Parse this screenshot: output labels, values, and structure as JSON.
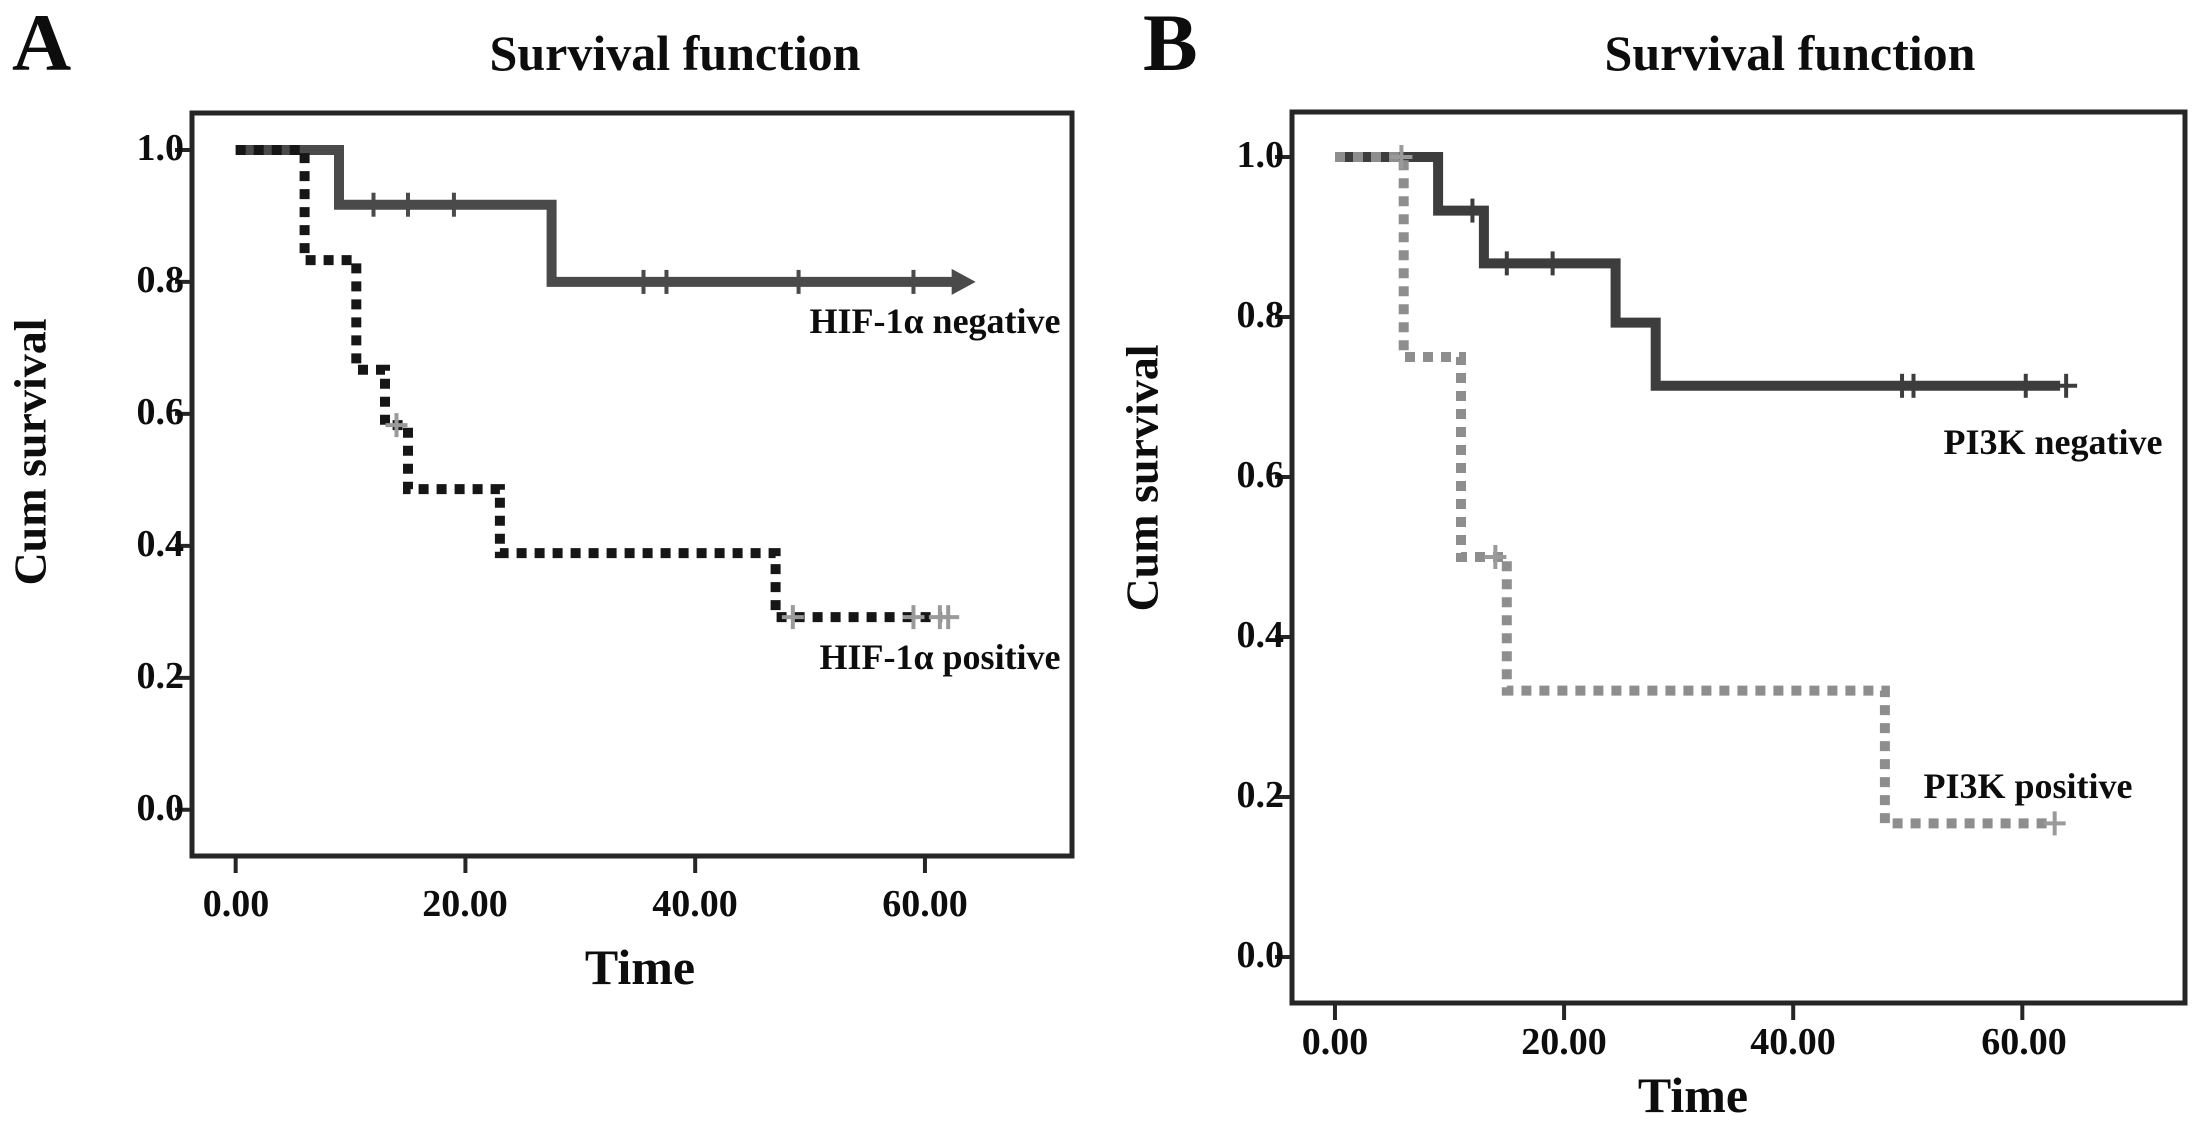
{
  "figure": {
    "panel_a_letter": "A",
    "panel_b_letter": "B"
  },
  "chart_data": [
    {
      "type": "line",
      "subtype": "kaplan-meier-step",
      "panel": "A",
      "title": "Survival function",
      "xlabel": "Time",
      "ylabel": "Cum survival",
      "xlim": [
        -3.8,
        72.8
      ],
      "ylim": [
        -0.07,
        1.056
      ],
      "grid": false,
      "legend_position": "labels-on-plot",
      "xticks": [
        {
          "t": 0,
          "label": "0.00"
        },
        {
          "t": 20,
          "label": "20.00"
        },
        {
          "t": 40,
          "label": "40.00"
        },
        {
          "t": 60,
          "label": "60.00"
        }
      ],
      "yticks": [
        {
          "v": 1.0,
          "label": "1.0"
        },
        {
          "v": 0.8,
          "label": "0.8"
        },
        {
          "v": 0.6,
          "label": "0.6"
        },
        {
          "v": 0.4,
          "label": "0.4"
        },
        {
          "v": 0.2,
          "label": "0.2"
        },
        {
          "v": 0.0,
          "label": "0.0"
        }
      ],
      "series": [
        {
          "name": "HIF-1α negative",
          "style": "solid",
          "color": "#4a4a4a",
          "censor_color": "#4a4a4a",
          "end_marker": "arrow",
          "points": [
            [
              0,
              1
            ],
            [
              9,
              1
            ],
            [
              9,
              0.917
            ],
            [
              27.5,
              0.917
            ],
            [
              27.5,
              0.8
            ],
            [
              62.5,
              0.8
            ]
          ],
          "censors": [
            [
              12,
              0.917
            ],
            [
              15,
              0.917
            ],
            [
              19,
              0.917
            ],
            [
              35.5,
              0.8
            ],
            [
              37.5,
              0.8
            ],
            [
              49,
              0.8
            ],
            [
              59,
              0.8
            ]
          ]
        },
        {
          "name": "HIF-1α positive",
          "style": "dotted",
          "color": "#161616",
          "censor_color": "#9a9a9a",
          "end_marker": "cross",
          "points": [
            [
              0,
              1
            ],
            [
              6,
              1
            ],
            [
              6,
              0.833
            ],
            [
              10.5,
              0.833
            ],
            [
              10.5,
              0.667
            ],
            [
              13,
              0.667
            ],
            [
              13,
              0.583
            ],
            [
              15,
              0.583
            ],
            [
              15,
              0.486
            ],
            [
              23,
              0.486
            ],
            [
              23,
              0.389
            ],
            [
              47,
              0.389
            ],
            [
              47,
              0.292
            ],
            [
              61.5,
              0.292
            ]
          ],
          "censors": [
            [
              14,
              0.583
            ],
            [
              48.5,
              0.292
            ],
            [
              59,
              0.292
            ],
            [
              61.3,
              0.292
            ]
          ]
        }
      ]
    },
    {
      "type": "line",
      "subtype": "kaplan-meier-step",
      "panel": "B",
      "title": "Survival function",
      "xlabel": "Time",
      "ylabel": "Cum survival",
      "xlim": [
        -3.75,
        74.2
      ],
      "ylim": [
        -0.0575,
        1.05625
      ],
      "grid": false,
      "legend_position": "labels-on-plot",
      "xticks": [
        {
          "t": 0,
          "label": "0.00"
        },
        {
          "t": 20,
          "label": "20.00"
        },
        {
          "t": 40,
          "label": "40.00"
        },
        {
          "t": 60,
          "label": "60.00"
        }
      ],
      "yticks": [
        {
          "v": 1.0,
          "label": "1.0"
        },
        {
          "v": 0.8,
          "label": "0.8"
        },
        {
          "v": 0.6,
          "label": "0.6"
        },
        {
          "v": 0.4,
          "label": "0.4"
        },
        {
          "v": 0.2,
          "label": "0.2"
        },
        {
          "v": 0.0,
          "label": "0.0"
        }
      ],
      "series": [
        {
          "name": "PI3K negative",
          "style": "solid",
          "color": "#3d3d3d",
          "censor_color": "#3d3d3d",
          "end_marker": "cross",
          "points": [
            [
              0,
              1
            ],
            [
              9,
              1
            ],
            [
              9,
              0.933
            ],
            [
              13,
              0.933
            ],
            [
              13,
              0.867
            ],
            [
              24.5,
              0.867
            ],
            [
              24.5,
              0.793
            ],
            [
              28,
              0.793
            ],
            [
              28,
              0.714
            ],
            [
              63.3,
              0.714
            ]
          ],
          "censors": [
            [
              12,
              0.933
            ],
            [
              15,
              0.867
            ],
            [
              19,
              0.867
            ],
            [
              49.5,
              0.714
            ],
            [
              50.5,
              0.714
            ],
            [
              60.3,
              0.714
            ]
          ]
        },
        {
          "name": "PI3K positive",
          "style": "dotted",
          "color": "#8e8e8e",
          "censor_color": "#9a9a9a",
          "end_marker": "cross",
          "points": [
            [
              0,
              1
            ],
            [
              6,
              1
            ],
            [
              6,
              0.75
            ],
            [
              11,
              0.75
            ],
            [
              11,
              0.5
            ],
            [
              15,
              0.5
            ],
            [
              15,
              0.333
            ],
            [
              48,
              0.333
            ],
            [
              48,
              0.167
            ],
            [
              62.3,
              0.167
            ]
          ],
          "censors": [
            [
              5.8,
              1
            ],
            [
              14,
              0.5
            ]
          ]
        }
      ]
    }
  ]
}
